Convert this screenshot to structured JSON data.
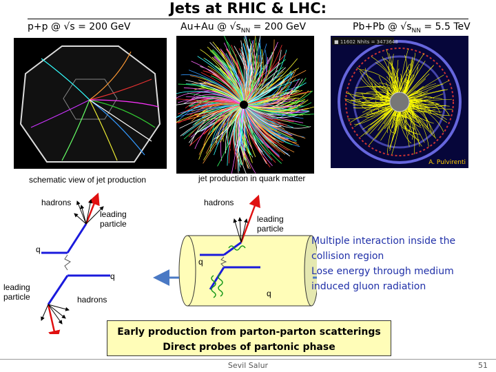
{
  "title": "Jets at RHIC & LHC:",
  "pp_label": "p+p @ √s = 200 GeV",
  "auau_label": "Au+Au @ √s",
  "auau_sub": "NN",
  "auau_tail": " = 200 GeV",
  "pbpb_label": "Pb+Pb @ √s",
  "pbpb_sub": "NN",
  "pbpb_tail": " = 5.5 TeV",
  "pbpb_credit": "A. Pulvirenti",
  "pbpb_stamp": "■ 11602   Nhits = 3473648",
  "schematic_caption": "schematic view of jet production",
  "quark_matter_caption": "jet production in quark matter",
  "left_diagram": {
    "hadrons_top": "hadrons",
    "leading_particle_top": "leading\nparticle",
    "q_top": "q",
    "q_bottom": "q",
    "leading_particle_bottom": "leading\nparticle",
    "hadrons_bottom": "hadrons"
  },
  "right_diagram": {
    "hadrons": "hadrons",
    "leading_particle": "leading\nparticle",
    "q_left": "q",
    "q_bottom": "q"
  },
  "multi_interaction": [
    "Multiple interaction inside the",
    "collision region",
    "Lose energy through medium",
    "induced gluon radiation"
  ],
  "banner": [
    "Early production from parton-parton scatterings",
    "Direct probes of partonic phase"
  ],
  "author": "Sevil Salur",
  "page_number": "51",
  "colors": {
    "text_blue": "#1f2fa8",
    "banner_bg": "#fffdb8",
    "jet_red": "#e01010",
    "quark_blue": "#1a1adc",
    "gluon_green": "#1a9a1a"
  }
}
